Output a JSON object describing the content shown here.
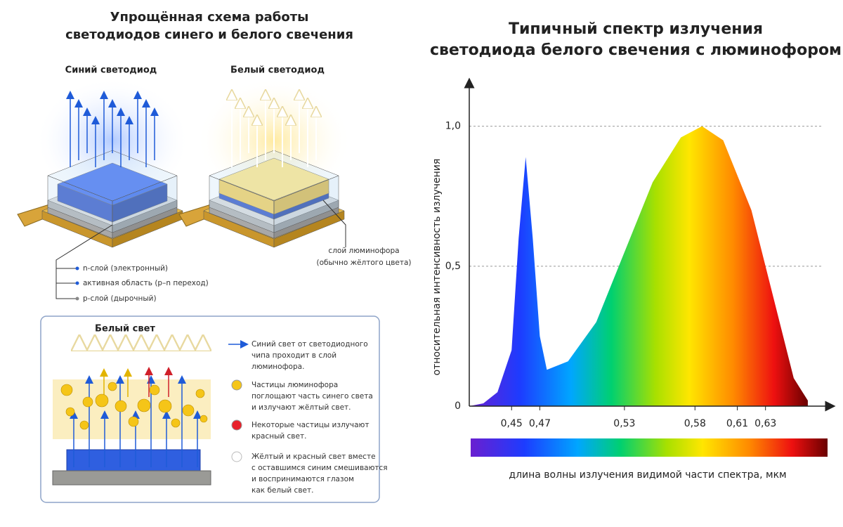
{
  "diagram": {
    "title": [
      "Упрощённая схема работы",
      "светодиодов синего и белого свечения"
    ],
    "blue_led": {
      "label": "Синий светодиод",
      "layers": [
        "n-слой (электронный)",
        "активная область (p–n переход)",
        "p-слой (дырочный)"
      ]
    },
    "white_led": {
      "label": "Белый светодиод",
      "phosphor": [
        "слой люминофора",
        "(обычно жёлтого цвета)"
      ]
    },
    "white_light": {
      "title": "Белый свет",
      "legend": [
        [
          "Синий свет от светодиодного",
          "чипа проходит в слой",
          "люминофора."
        ],
        [
          "Частицы люминофора",
          "поглощают часть синего света",
          "и излучают жёлтый свет."
        ],
        [
          "Некоторые частицы излучают",
          "красный свет."
        ],
        [
          "Жёлтый и красный свет вместе",
          "с оставшимся синим смешиваются",
          "и воспринимаются глазом",
          "как белый свет."
        ]
      ]
    }
  },
  "chart_data": {
    "type": "line",
    "title": [
      "Типичный спектр излучения",
      "светодиода белого свечения с люминофором"
    ],
    "ylabel": "относительная интенсивность излучения",
    "xlabel": "длина волны излучения видимой части спектра, мкм",
    "x": [
      0.42,
      0.43,
      0.44,
      0.45,
      0.455,
      0.46,
      0.465,
      0.47,
      0.475,
      0.49,
      0.51,
      0.53,
      0.55,
      0.57,
      0.585,
      0.6,
      0.62,
      0.635,
      0.65,
      0.66
    ],
    "values": [
      0.0,
      0.01,
      0.05,
      0.2,
      0.6,
      0.89,
      0.6,
      0.25,
      0.13,
      0.16,
      0.3,
      0.55,
      0.8,
      0.96,
      1.0,
      0.95,
      0.7,
      0.4,
      0.1,
      0.02
    ],
    "xlim": [
      0.42,
      0.67
    ],
    "ylim": [
      0,
      1.2
    ],
    "xticks": [
      {
        "value": 0.45,
        "label": "0,45"
      },
      {
        "value": 0.47,
        "label": "0,47"
      },
      {
        "value": 0.53,
        "label": "0,53"
      },
      {
        "value": 0.58,
        "label": "0,58"
      },
      {
        "value": 0.61,
        "label": "0,61"
      },
      {
        "value": 0.63,
        "label": "0,63"
      }
    ],
    "yticks": [
      0,
      {
        "value": 0.5,
        "label": "0,5"
      },
      {
        "value": 1.0,
        "label": "1,0"
      }
    ],
    "grid": true
  }
}
